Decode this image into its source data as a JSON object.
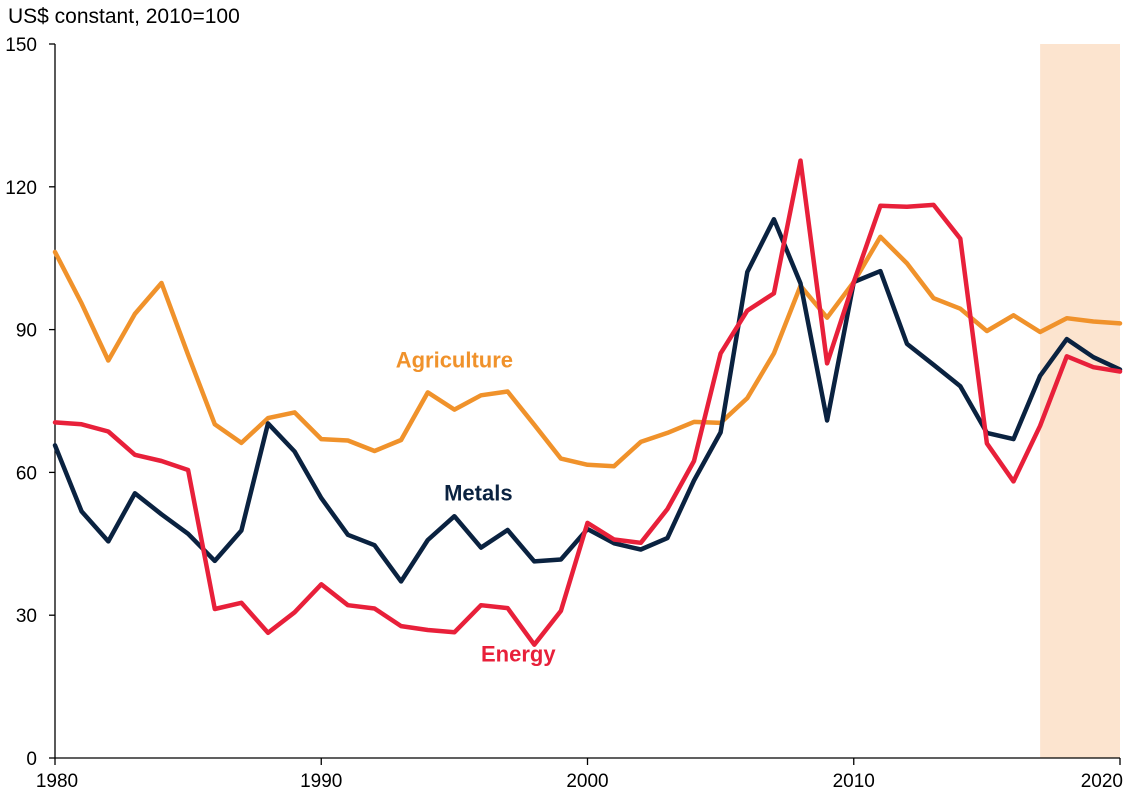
{
  "chart_data": {
    "type": "line",
    "ylabel": "US$ constant, 2010=100",
    "xlabel": "",
    "xlim": [
      1980,
      2020
    ],
    "ylim": [
      0,
      150
    ],
    "yticks": [
      0,
      30,
      60,
      90,
      120,
      150
    ],
    "xticks": [
      1980,
      1990,
      2000,
      2010,
      2020
    ],
    "grid": false,
    "legend": "inline labels",
    "shaded_region": {
      "x_start": 2017,
      "x_end": 2020,
      "color": "#FCE4CF"
    },
    "x": [
      1980,
      1981,
      1982,
      1983,
      1984,
      1985,
      1986,
      1987,
      1988,
      1989,
      1990,
      1991,
      1992,
      1993,
      1994,
      1995,
      1996,
      1997,
      1998,
      1999,
      2000,
      2001,
      2002,
      2003,
      2004,
      2005,
      2006,
      2007,
      2008,
      2009,
      2010,
      2011,
      2012,
      2013,
      2014,
      2015,
      2016,
      2017,
      2018,
      2019,
      2020
    ],
    "series": [
      {
        "name": "Agriculture",
        "color": "#F0922B",
        "values": [
          106.3,
          95.5,
          83.5,
          93.3,
          99.8,
          84.7,
          70.1,
          66.2,
          71.4,
          72.6,
          67.0,
          66.7,
          64.5,
          66.8,
          76.8,
          73.2,
          76.2,
          77.0,
          70.0,
          62.9,
          61.6,
          61.3,
          66.4,
          68.3,
          70.6,
          70.4,
          75.6,
          85.0,
          99.2,
          92.5,
          100.0,
          109.5,
          103.9,
          96.6,
          94.4,
          89.7,
          93.0,
          89.5,
          92.4,
          91.7,
          91.3
        ]
      },
      {
        "name": "Metals",
        "color": "#0A2240",
        "values": [
          65.7,
          51.8,
          45.5,
          55.6,
          51.2,
          47.1,
          41.4,
          47.8,
          70.3,
          64.4,
          54.6,
          46.9,
          44.7,
          37.1,
          45.8,
          50.8,
          44.2,
          47.9,
          41.3,
          41.7,
          48.1,
          45.1,
          43.8,
          46.2,
          58.3,
          68.4,
          102.1,
          113.2,
          99.7,
          70.9,
          100.0,
          102.3,
          87.0,
          82.6,
          78.1,
          68.3,
          67.0,
          80.3,
          88.0,
          84.2,
          81.6
        ]
      },
      {
        "name": "Energy",
        "color": "#E8203A",
        "values": [
          70.5,
          70.1,
          68.6,
          63.7,
          62.4,
          60.5,
          31.3,
          32.6,
          26.3,
          30.6,
          36.5,
          32.1,
          31.4,
          27.7,
          26.9,
          26.4,
          32.1,
          31.5,
          23.8,
          30.9,
          49.4,
          45.9,
          45.2,
          52.3,
          62.4,
          85.0,
          94.0,
          97.6,
          125.5,
          82.9,
          100.0,
          116.0,
          115.8,
          116.2,
          109.1,
          66.1,
          58.1,
          69.8,
          84.4,
          82.1,
          81.2
        ]
      }
    ],
    "annotations": [
      {
        "text": "Agriculture",
        "series": "Agriculture",
        "x": 1995.0,
        "y": 82.0
      },
      {
        "text": "Metals",
        "series": "Metals",
        "x": 1995.9,
        "y": 54.1
      },
      {
        "text": "Energy",
        "series": "Energy",
        "x": 1997.4,
        "y": 20.3
      }
    ]
  }
}
